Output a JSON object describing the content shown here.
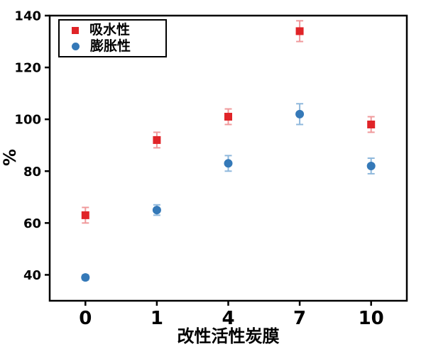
{
  "chart_data": {
    "type": "scatter",
    "title": "",
    "xlabel": "改性活性炭膜",
    "ylabel": "%",
    "x_axis_type": "categorical",
    "categories": [
      "0",
      "1",
      "4",
      "7",
      "10"
    ],
    "series": [
      {
        "name": "吸水性",
        "marker": "square",
        "color": "#e02428",
        "errorbar_color": "#f0999b",
        "values": [
          63,
          92,
          101,
          134,
          98
        ],
        "errors": [
          3,
          3,
          3,
          4,
          3
        ]
      },
      {
        "name": "膨胀性",
        "marker": "circle",
        "color": "#3579b8",
        "errorbar_color": "#8fb8dc",
        "values": [
          39,
          65,
          83,
          102,
          82
        ],
        "errors": [
          1,
          2,
          3,
          4,
          3
        ]
      }
    ],
    "y_ticks": [
      40,
      60,
      80,
      100,
      120,
      140
    ],
    "ylim": [
      30,
      140
    ],
    "grid": false,
    "legend_position": "upper-left",
    "axis_color": "#000000",
    "background_color": "#ffffff"
  }
}
